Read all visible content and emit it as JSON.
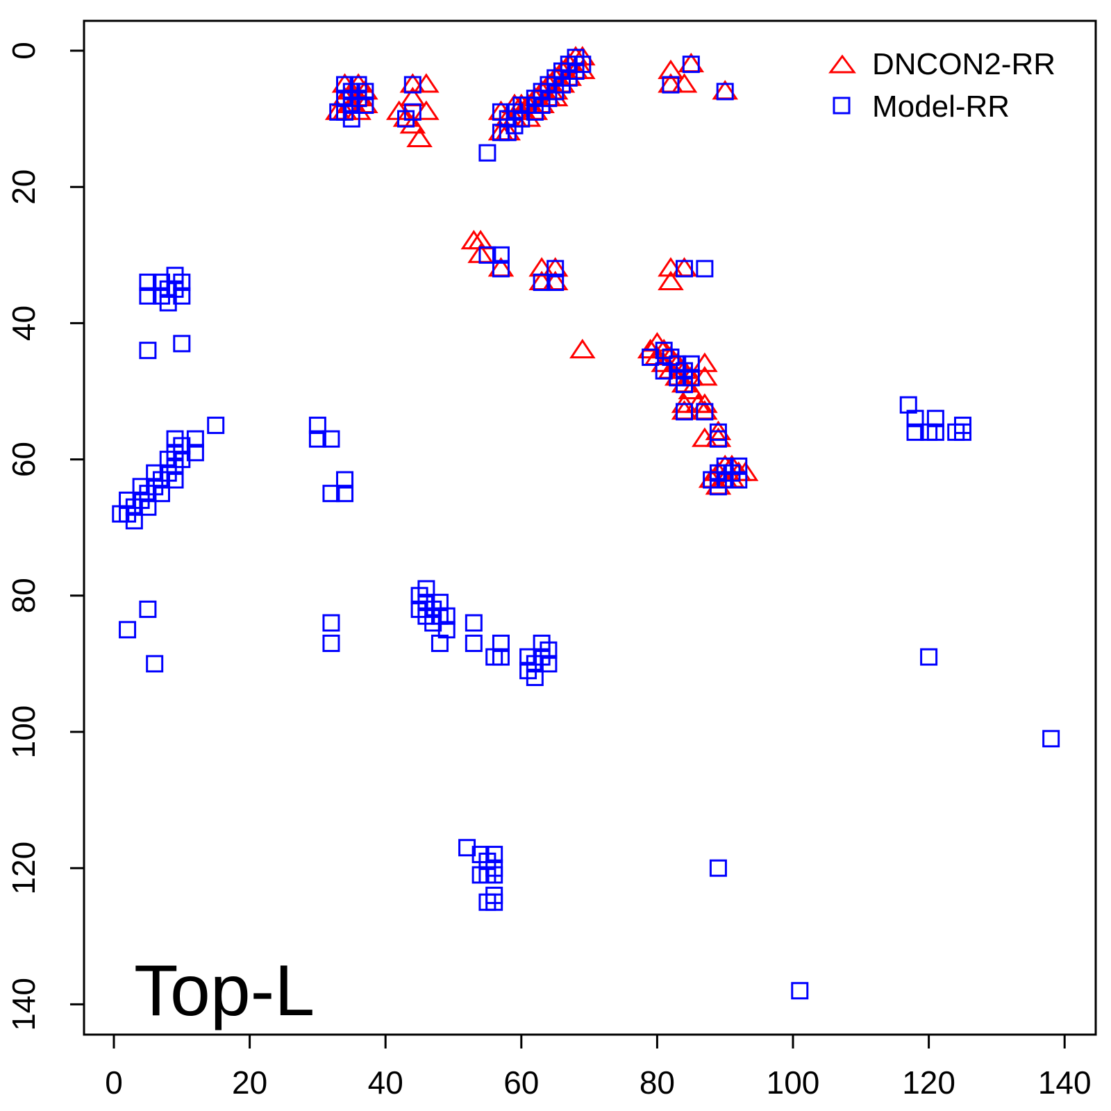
{
  "chart_data": {
    "type": "scatter",
    "title": "",
    "xlabel": "",
    "ylabel": "",
    "xlim": [
      -4,
      144
    ],
    "ylim": [
      144.5,
      -4.5
    ],
    "y_reversed": true,
    "x_ticks": [
      0,
      20,
      40,
      60,
      80,
      100,
      120,
      140
    ],
    "y_ticks": [
      0,
      20,
      40,
      60,
      80,
      100,
      120,
      140
    ],
    "grid": false,
    "legend_position": "top-right",
    "panel_label": "Top-L",
    "series": [
      {
        "name": "DNCON2-RR",
        "marker": "triangle",
        "color": "#ff0000",
        "points": [
          [
            33,
            9
          ],
          [
            34,
            5
          ],
          [
            34,
            7
          ],
          [
            34,
            9
          ],
          [
            35,
            6
          ],
          [
            35,
            8
          ],
          [
            36,
            5
          ],
          [
            36,
            7
          ],
          [
            36,
            9
          ],
          [
            37,
            6
          ],
          [
            37,
            8
          ],
          [
            42,
            9
          ],
          [
            43,
            10
          ],
          [
            44,
            5
          ],
          [
            44,
            7
          ],
          [
            44,
            11
          ],
          [
            45,
            13
          ],
          [
            46,
            5
          ],
          [
            46,
            9
          ],
          [
            53,
            28
          ],
          [
            54,
            28
          ],
          [
            54,
            30
          ],
          [
            57,
            32
          ],
          [
            57,
            9
          ],
          [
            57,
            12
          ],
          [
            58,
            10
          ],
          [
            58,
            12
          ],
          [
            59,
            8
          ],
          [
            59,
            10
          ],
          [
            60,
            8
          ],
          [
            60,
            9
          ],
          [
            61,
            8
          ],
          [
            61,
            10
          ],
          [
            62,
            7
          ],
          [
            62,
            9
          ],
          [
            63,
            6
          ],
          [
            63,
            8
          ],
          [
            64,
            5
          ],
          [
            64,
            7
          ],
          [
            65,
            4
          ],
          [
            65,
            6
          ],
          [
            65,
            7
          ],
          [
            66,
            3
          ],
          [
            66,
            5
          ],
          [
            67,
            2
          ],
          [
            67,
            4
          ],
          [
            68,
            1
          ],
          [
            68,
            3
          ],
          [
            69,
            1
          ],
          [
            69,
            3
          ],
          [
            63,
            32
          ],
          [
            63,
            34
          ],
          [
            65,
            32
          ],
          [
            65,
            34
          ],
          [
            69,
            44
          ],
          [
            82,
            3
          ],
          [
            82,
            5
          ],
          [
            84,
            5
          ],
          [
            85,
            2
          ],
          [
            90,
            6
          ],
          [
            82,
            32
          ],
          [
            82,
            34
          ],
          [
            84,
            32
          ],
          [
            79,
            44
          ],
          [
            80,
            43
          ],
          [
            80,
            45
          ],
          [
            81,
            44
          ],
          [
            81,
            46
          ],
          [
            82,
            45
          ],
          [
            82,
            47
          ],
          [
            83,
            46
          ],
          [
            83,
            48
          ],
          [
            84,
            47
          ],
          [
            84,
            49
          ],
          [
            85,
            48
          ],
          [
            85,
            50
          ],
          [
            87,
            46
          ],
          [
            87,
            48
          ],
          [
            84,
            52
          ],
          [
            84,
            53
          ],
          [
            86,
            52
          ],
          [
            87,
            52
          ],
          [
            87,
            53
          ],
          [
            87,
            57
          ],
          [
            89,
            56
          ],
          [
            89,
            57
          ],
          [
            88,
            63
          ],
          [
            89,
            62
          ],
          [
            89,
            64
          ],
          [
            90,
            61
          ],
          [
            90,
            63
          ],
          [
            91,
            61
          ],
          [
            91,
            63
          ],
          [
            92,
            62
          ],
          [
            93,
            62
          ]
        ]
      },
      {
        "name": "Model-RR",
        "marker": "square",
        "color": "#0000ff",
        "points": [
          [
            33,
            9
          ],
          [
            34,
            5
          ],
          [
            34,
            7
          ],
          [
            34,
            9
          ],
          [
            35,
            6
          ],
          [
            35,
            8
          ],
          [
            35,
            10
          ],
          [
            36,
            5
          ],
          [
            36,
            7
          ],
          [
            37,
            6
          ],
          [
            37,
            8
          ],
          [
            43,
            10
          ],
          [
            44,
            5
          ],
          [
            44,
            9
          ],
          [
            55,
            15
          ],
          [
            57,
            9
          ],
          [
            57,
            12
          ],
          [
            58,
            10
          ],
          [
            58,
            12
          ],
          [
            59,
            9
          ],
          [
            59,
            11
          ],
          [
            60,
            8
          ],
          [
            60,
            10
          ],
          [
            61,
            8
          ],
          [
            62,
            7
          ],
          [
            62,
            9
          ],
          [
            63,
            6
          ],
          [
            63,
            8
          ],
          [
            64,
            5
          ],
          [
            64,
            7
          ],
          [
            65,
            4
          ],
          [
            65,
            6
          ],
          [
            66,
            3
          ],
          [
            66,
            5
          ],
          [
            67,
            2
          ],
          [
            67,
            4
          ],
          [
            68,
            1
          ],
          [
            68,
            3
          ],
          [
            69,
            2
          ],
          [
            55,
            30
          ],
          [
            57,
            30
          ],
          [
            57,
            32
          ],
          [
            63,
            34
          ],
          [
            65,
            32
          ],
          [
            65,
            34
          ],
          [
            82,
            5
          ],
          [
            85,
            2
          ],
          [
            90,
            6
          ],
          [
            84,
            32
          ],
          [
            87,
            32
          ],
          [
            5,
            34
          ],
          [
            5,
            36
          ],
          [
            7,
            34
          ],
          [
            7,
            36
          ],
          [
            8,
            35
          ],
          [
            8,
            37
          ],
          [
            9,
            33
          ],
          [
            9,
            35
          ],
          [
            10,
            34
          ],
          [
            10,
            36
          ],
          [
            10,
            43
          ],
          [
            5,
            44
          ],
          [
            1,
            68
          ],
          [
            2,
            66
          ],
          [
            2,
            68
          ],
          [
            3,
            67
          ],
          [
            3,
            69
          ],
          [
            4,
            64
          ],
          [
            4,
            66
          ],
          [
            5,
            65
          ],
          [
            5,
            67
          ],
          [
            6,
            62
          ],
          [
            6,
            64
          ],
          [
            7,
            63
          ],
          [
            7,
            65
          ],
          [
            8,
            60
          ],
          [
            8,
            62
          ],
          [
            9,
            57
          ],
          [
            9,
            59
          ],
          [
            9,
            61
          ],
          [
            9,
            63
          ],
          [
            10,
            58
          ],
          [
            10,
            60
          ],
          [
            12,
            57
          ],
          [
            12,
            59
          ],
          [
            15,
            55
          ],
          [
            30,
            55
          ],
          [
            30,
            57
          ],
          [
            32,
            57
          ],
          [
            32,
            65
          ],
          [
            34,
            63
          ],
          [
            34,
            65
          ],
          [
            79,
            45
          ],
          [
            81,
            44
          ],
          [
            81,
            47
          ],
          [
            82,
            45
          ],
          [
            83,
            46
          ],
          [
            83,
            48
          ],
          [
            84,
            47
          ],
          [
            84,
            49
          ],
          [
            85,
            46
          ],
          [
            85,
            48
          ],
          [
            84,
            53
          ],
          [
            87,
            53
          ],
          [
            89,
            56
          ],
          [
            89,
            57
          ],
          [
            88,
            63
          ],
          [
            89,
            62
          ],
          [
            89,
            64
          ],
          [
            90,
            61
          ],
          [
            90,
            63
          ],
          [
            91,
            62
          ],
          [
            92,
            61
          ],
          [
            92,
            63
          ],
          [
            117,
            52
          ],
          [
            118,
            54
          ],
          [
            118,
            56
          ],
          [
            120,
            56
          ],
          [
            121,
            54
          ],
          [
            121,
            56
          ],
          [
            124,
            56
          ],
          [
            125,
            55
          ],
          [
            125,
            56
          ],
          [
            2,
            85
          ],
          [
            5,
            82
          ],
          [
            6,
            90
          ],
          [
            32,
            84
          ],
          [
            32,
            87
          ],
          [
            45,
            80
          ],
          [
            45,
            82
          ],
          [
            46,
            79
          ],
          [
            46,
            81
          ],
          [
            46,
            83
          ],
          [
            47,
            82
          ],
          [
            47,
            84
          ],
          [
            48,
            81
          ],
          [
            48,
            83
          ],
          [
            48,
            87
          ],
          [
            49,
            83
          ],
          [
            49,
            85
          ],
          [
            53,
            84
          ],
          [
            53,
            87
          ],
          [
            56,
            89
          ],
          [
            57,
            87
          ],
          [
            57,
            89
          ],
          [
            61,
            89
          ],
          [
            61,
            91
          ],
          [
            62,
            90
          ],
          [
            62,
            92
          ],
          [
            63,
            87
          ],
          [
            63,
            89
          ],
          [
            64,
            88
          ],
          [
            64,
            90
          ],
          [
            120,
            89
          ],
          [
            138,
            101
          ],
          [
            52,
            117
          ],
          [
            54,
            118
          ],
          [
            54,
            121
          ],
          [
            55,
            119
          ],
          [
            55,
            121
          ],
          [
            56,
            118
          ],
          [
            56,
            120
          ],
          [
            56,
            121
          ],
          [
            55,
            125
          ],
          [
            56,
            124
          ],
          [
            56,
            125
          ],
          [
            89,
            120
          ],
          [
            101,
            138
          ]
        ]
      }
    ]
  }
}
